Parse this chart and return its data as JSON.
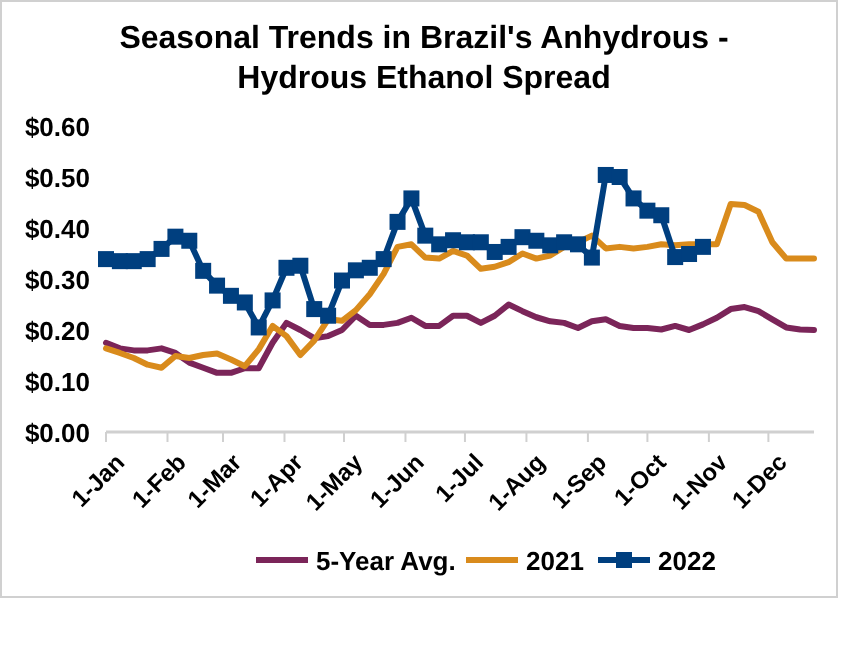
{
  "chart_data": {
    "type": "line",
    "title": "Seasonal Trends in Brazil's Anhydrous - Hydrous Ethanol Spread",
    "x": [
      "--01-01",
      "--01-08",
      "--01-15",
      "--01-22",
      "--01-29",
      "--02-05",
      "--02-12",
      "--02-19",
      "--02-26",
      "--03-05",
      "--03-12",
      "--03-19",
      "--03-26",
      "--04-02",
      "--04-09",
      "--04-16",
      "--04-23",
      "--04-30",
      "--05-07",
      "--05-14",
      "--05-21",
      "--05-28",
      "--06-04",
      "--06-11",
      "--06-18",
      "--06-25",
      "--07-02",
      "--07-09",
      "--07-16",
      "--07-23",
      "--07-30",
      "--08-06",
      "--08-13",
      "--08-20",
      "--08-27",
      "--09-03",
      "--09-10",
      "--09-17",
      "--09-24",
      "--10-01",
      "--10-08",
      "--10-15",
      "--10-22",
      "--10-29",
      "--11-05",
      "--11-12",
      "--11-19",
      "--11-26",
      "--12-03",
      "--12-10",
      "--12-17",
      "--12-24"
    ],
    "series": [
      {
        "name": "5-Year Avg.",
        "color": "#7b2559",
        "marker": "none",
        "values": [
          0.175,
          0.164,
          0.16,
          0.16,
          0.164,
          0.155,
          0.136,
          0.126,
          0.116,
          0.116,
          0.125,
          0.125,
          0.175,
          0.214,
          0.2,
          0.184,
          0.188,
          0.2,
          0.228,
          0.21,
          0.21,
          0.214,
          0.224,
          0.208,
          0.208,
          0.228,
          0.228,
          0.214,
          0.228,
          0.25,
          0.237,
          0.225,
          0.217,
          0.214,
          0.204,
          0.217,
          0.221,
          0.208,
          0.204,
          0.204,
          0.201,
          0.208,
          0.2,
          0.211,
          0.224,
          0.241,
          0.245,
          0.237,
          0.221,
          0.205,
          0.201,
          0.2
        ]
      },
      {
        "name": "2021",
        "color": "#d98b1c",
        "marker": "none",
        "values": [
          0.164,
          0.155,
          0.145,
          0.132,
          0.126,
          0.149,
          0.145,
          0.151,
          0.154,
          0.142,
          0.129,
          0.162,
          0.208,
          0.188,
          0.151,
          0.179,
          0.221,
          0.218,
          0.239,
          0.27,
          0.31,
          0.363,
          0.368,
          0.342,
          0.34,
          0.355,
          0.346,
          0.32,
          0.324,
          0.333,
          0.35,
          0.34,
          0.346,
          0.363,
          0.372,
          0.385,
          0.36,
          0.363,
          0.36,
          0.363,
          0.368,
          0.366,
          0.368,
          0.368,
          0.368,
          0.447,
          0.445,
          0.432,
          0.372,
          0.34,
          0.34,
          0.34
        ]
      },
      {
        "name": "2022",
        "color": "#003f7f",
        "marker": "square",
        "values": [
          0.339,
          0.335,
          0.335,
          0.339,
          0.359,
          0.383,
          0.375,
          0.316,
          0.287,
          0.267,
          0.254,
          0.205,
          0.258,
          0.322,
          0.326,
          0.241,
          0.228,
          0.297,
          0.317,
          0.322,
          0.339,
          0.412,
          0.458,
          0.385,
          0.368,
          0.376,
          0.372,
          0.372,
          0.353,
          0.363,
          0.382,
          0.375,
          0.366,
          0.372,
          0.368,
          0.342,
          0.504,
          0.5,
          0.458,
          0.434,
          0.425,
          0.343,
          0.349,
          0.363,
          null,
          null,
          null,
          null,
          null,
          null,
          null,
          null
        ]
      }
    ],
    "xlim": [
      "--01-01",
      "--12-24"
    ],
    "xticks": [
      {
        "value": "--01-01",
        "label": "1-Jan"
      },
      {
        "value": "--02-01",
        "label": "1-Feb"
      },
      {
        "value": "--03-01",
        "label": "1-Mar"
      },
      {
        "value": "--04-01",
        "label": "1-Apr"
      },
      {
        "value": "--05-01",
        "label": "1-May"
      },
      {
        "value": "--06-01",
        "label": "1-Jun"
      },
      {
        "value": "--07-01",
        "label": "1-Jul"
      },
      {
        "value": "--08-01",
        "label": "1-Aug"
      },
      {
        "value": "--09-01",
        "label": "1-Sep"
      },
      {
        "value": "--10-01",
        "label": "1-Oct"
      },
      {
        "value": "--11-01",
        "label": "1-Nov"
      },
      {
        "value": "--12-01",
        "label": "1-Dec"
      }
    ],
    "ylim": [
      0,
      0.6
    ],
    "yticks": [
      {
        "value": 0,
        "label": "$0.00"
      },
      {
        "value": 0.1,
        "label": "$0.10"
      },
      {
        "value": 0.2,
        "label": "$0.20"
      },
      {
        "value": 0.3,
        "label": "$0.30"
      },
      {
        "value": 0.4,
        "label": "$0.40"
      },
      {
        "value": 0.5,
        "label": "$0.50"
      },
      {
        "value": 0.6,
        "label": "$0.60"
      }
    ],
    "legend": "bottom",
    "line_style": "solid"
  }
}
